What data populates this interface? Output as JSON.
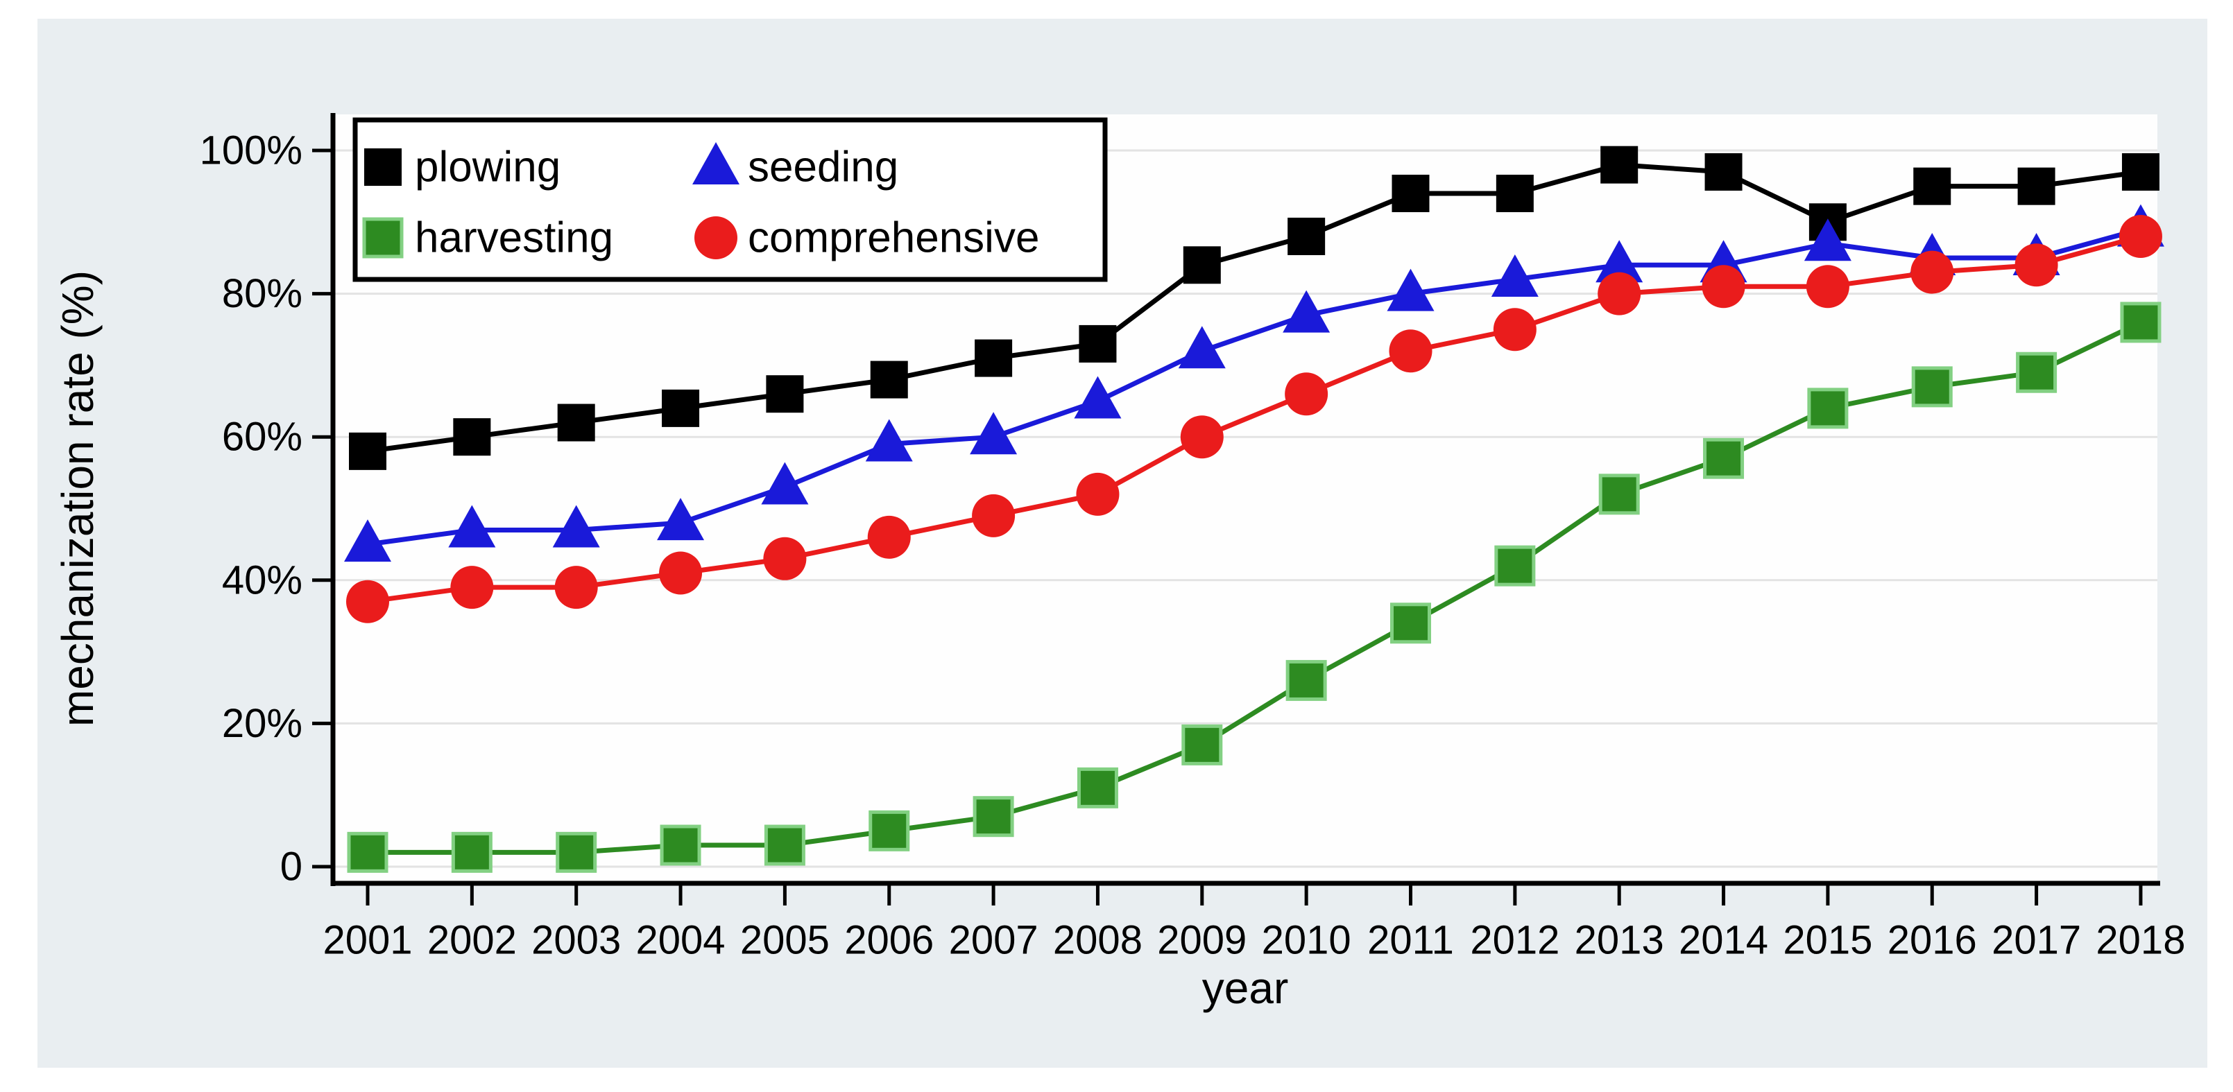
{
  "figure": {
    "background": "#ffffff",
    "canvas_color": "#e9eef1",
    "plot_background": "#fefefe",
    "gridline_color": "#e3e3e3",
    "axis_color": "#000000",
    "text_color": "#000000",
    "legend_border_color": "#000000",
    "legend_background": "#ffffff"
  },
  "chart_data": {
    "type": "line",
    "title": "",
    "xlabel": "year",
    "ylabel": "mechanization rate (%)",
    "x": [
      2001,
      2002,
      2003,
      2004,
      2005,
      2006,
      2007,
      2008,
      2009,
      2010,
      2011,
      2012,
      2013,
      2014,
      2015,
      2016,
      2017,
      2018
    ],
    "x_tick_labels": [
      "2001",
      "2002",
      "2003",
      "2004",
      "2005",
      "2006",
      "2007",
      "2008",
      "2009",
      "2010",
      "2011",
      "2012",
      "2013",
      "2014",
      "2015",
      "2016",
      "2017",
      "2018"
    ],
    "y_tick_values": [
      0,
      20,
      40,
      60,
      80,
      100
    ],
    "y_tick_labels": [
      "0",
      "20%",
      "40%",
      "60%",
      "80%",
      "100%"
    ],
    "ylim": [
      0,
      105
    ],
    "grid": "horizontal",
    "legend_position": "top-left-inside",
    "legend_rows": 2,
    "legend_columns": 2,
    "series": [
      {
        "name": "plowing",
        "color": "#000000",
        "marker": "square",
        "values": [
          58,
          60,
          62,
          64,
          66,
          68,
          71,
          73,
          84,
          88,
          94,
          94,
          98,
          97,
          90,
          95,
          95,
          97
        ]
      },
      {
        "name": "seeding",
        "color": "#1a1ad9",
        "marker": "triangle",
        "values": [
          45,
          47,
          47,
          48,
          53,
          59,
          60,
          65,
          72,
          77,
          80,
          82,
          84,
          84,
          87,
          85,
          85,
          89
        ]
      },
      {
        "name": "harvesting",
        "color": "#2d8b21",
        "marker": "square",
        "marker_outline": "#82d082",
        "values": [
          2,
          2,
          2,
          3,
          3,
          5,
          7,
          11,
          17,
          26,
          34,
          42,
          52,
          57,
          64,
          67,
          69,
          76
        ]
      },
      {
        "name": "comprehensive",
        "color": "#ea1c1c",
        "marker": "circle",
        "values": [
          37,
          39,
          39,
          41,
          43,
          46,
          49,
          52,
          60,
          66,
          72,
          75,
          80,
          81,
          81,
          83,
          84,
          88
        ]
      }
    ]
  }
}
